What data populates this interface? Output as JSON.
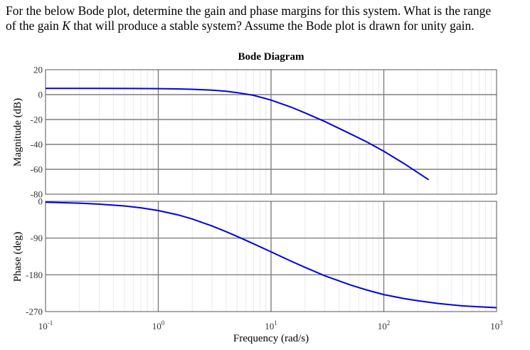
{
  "question": {
    "line1": "For the below Bode plot, determine the gain and phase margins for this system. What is the range",
    "line2_pre": "of the gain ",
    "line2_var": "K",
    "line2_post": " that will produce a stable system? Assume the Bode plot is drawn for unity gain."
  },
  "chart_data": {
    "type": "line",
    "title": "Bode Diagram",
    "xlabel": "Frequency (rad/s)",
    "xscale": "log",
    "xlim": [
      0.1,
      1000
    ],
    "grid": true,
    "x_ticks": [
      {
        "value": 0.1,
        "base": "10",
        "exp": "-1"
      },
      {
        "value": 1,
        "base": "10",
        "exp": "0"
      },
      {
        "value": 10,
        "base": "10",
        "exp": "1"
      },
      {
        "value": 100,
        "base": "10",
        "exp": "2"
      },
      {
        "value": 1000,
        "base": "10",
        "exp": "3"
      }
    ],
    "panels": [
      {
        "name": "magnitude",
        "ylabel": "Magnitude (dB)",
        "ylim": [
          -80,
          20
        ],
        "yticks": [
          20,
          0,
          -20,
          -40,
          -60,
          -80
        ],
        "ytick_labels": [
          "20",
          "0",
          "-20",
          "-40",
          "-60",
          "-80"
        ],
        "series": [
          {
            "color": "#0000ee",
            "x": [
              0.1,
              0.3,
              0.6,
              1,
              1.5,
              2,
              3,
              4,
              5,
              7,
              10,
              15,
              20,
              30,
              50,
              70,
              100,
              150,
              250
            ],
            "y": [
              5,
              5,
              4.9,
              4.8,
              4.6,
              4.3,
              3.6,
              2.7,
              1.6,
              -0.6,
              -4.4,
              -10,
              -14.7,
              -21.6,
              -31.3,
              -37.8,
              -45.5,
              -55.2,
              -68.4
            ]
          }
        ]
      },
      {
        "name": "phase",
        "ylabel": "Phase (deg)",
        "ylim": [
          -270,
          0
        ],
        "yticks": [
          0,
          -90,
          -180,
          -270
        ],
        "ytick_labels": [
          "0",
          "-90",
          "-180",
          "-270"
        ],
        "series": [
          {
            "color": "#0000ee",
            "x": [
              0.1,
              0.2,
              0.3,
              0.5,
              0.7,
              1,
              1.5,
              2,
              3,
              4,
              5,
              7,
              10,
              15,
              20,
              30,
              50,
              70,
              100,
              150,
              200,
              300,
              500,
              700,
              1000
            ],
            "y": [
              -2.3,
              -4.6,
              -6.9,
              -11.3,
              -15.9,
              -22.6,
              -33.2,
              -43.2,
              -60.4,
              -74.4,
              -85.9,
              -104,
              -123.7,
              -146.4,
              -161.7,
              -182.4,
              -204.3,
              -216.8,
              -228.4,
              -238,
              -243.4,
              -250,
              -256,
              -258.4,
              -260.5
            ]
          }
        ]
      }
    ]
  }
}
